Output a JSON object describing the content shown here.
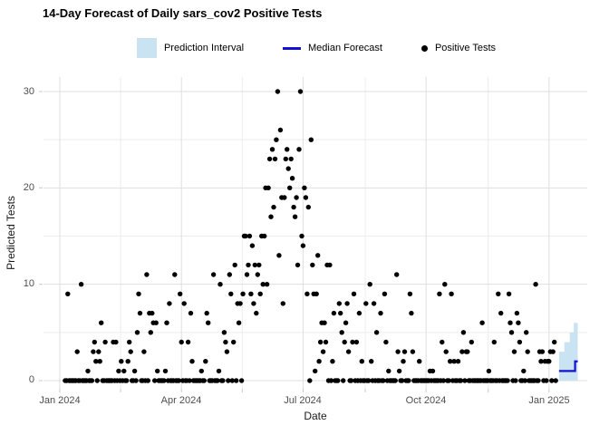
{
  "title": "14-Day Forecast of Daily sars_cov2 Positive Tests",
  "legend": {
    "prediction_interval": "Prediction Interval",
    "median_forecast": "Median Forecast",
    "positive_tests": "Positive Tests"
  },
  "colors": {
    "prediction_interval": "#C9E3F2",
    "median_forecast": "#1212D0",
    "points": "#000000",
    "grid_major": "#DFDFDF",
    "grid_minor": "#ECECEC",
    "tick": "#C9C9C9",
    "tick_label": "#4D4D4D"
  },
  "chart_data": {
    "type": "scatter",
    "title": "14-Day Forecast of Daily sars_cov2 Positive Tests",
    "xlabel": "Date",
    "ylabel": "Predicted Tests",
    "x_tick_labels": [
      "Jan 2024",
      "Apr 2024",
      "Jul 2024",
      "Oct 2024",
      "Jan 2025"
    ],
    "x_tick_days": [
      0,
      91,
      182,
      274,
      366
    ],
    "x_minor_days": [
      45.5,
      136.5,
      228.5,
      320.5
    ],
    "y_ticks": [
      0,
      10,
      20,
      30
    ],
    "y_minor": [
      5,
      15,
      25
    ],
    "ylim": [
      0,
      30
    ],
    "grid": true,
    "legend_position": "top",
    "day0_date": "2024-01-01",
    "cadence": "daily",
    "observed": {
      "name": "Positive Tests",
      "start_day": 4,
      "values": [
        0,
        0,
        9,
        0,
        0,
        0,
        0,
        0,
        0,
        3,
        0,
        0,
        10,
        0,
        0,
        0,
        0,
        1,
        0,
        0,
        0,
        3,
        4,
        2,
        0,
        3,
        2,
        6,
        0,
        0,
        4,
        0,
        0,
        0,
        0,
        0,
        4,
        0,
        4,
        0,
        1,
        0,
        2,
        0,
        1,
        0,
        0,
        2,
        4,
        3,
        0,
        0,
        1,
        0,
        5,
        9,
        7,
        0,
        0,
        3,
        0,
        11,
        0,
        7,
        5,
        7,
        6,
        0,
        6,
        1,
        0,
        0,
        0,
        0,
        0,
        1,
        6,
        0,
        8,
        0,
        0,
        0,
        11,
        0,
        0,
        0,
        9,
        4,
        0,
        8,
        0,
        0,
        4,
        0,
        7,
        2,
        0,
        0,
        0,
        0,
        0,
        0,
        1,
        0,
        0,
        2,
        7,
        6,
        0,
        0,
        0,
        11,
        0,
        0,
        0,
        1,
        10,
        0,
        0,
        5,
        4,
        3,
        0,
        11,
        9,
        0,
        4,
        12,
        0,
        8,
        6,
        8,
        0,
        9,
        15,
        15,
        11,
        12,
        15,
        9,
        14,
        8,
        12,
        7,
        11,
        12,
        9,
        15,
        10,
        15,
        20,
        10,
        20,
        23,
        17,
        24,
        18,
        23,
        25,
        30,
        13,
        26,
        19,
        8,
        19,
        23,
        24,
        22,
        20,
        23,
        21,
        18,
        17,
        19,
        12,
        24,
        30,
        15,
        14,
        20,
        19,
        9,
        18,
        0,
        25,
        12,
        9,
        1,
        9,
        13,
        2,
        4,
        6,
        3,
        6,
        4,
        12,
        0,
        12,
        0,
        2,
        7,
        0,
        0,
        0,
        8,
        7,
        5,
        0,
        4,
        6,
        8,
        3,
        0,
        0,
        4,
        9,
        0,
        4,
        0,
        7,
        0,
        2,
        0,
        0,
        8,
        0,
        0,
        10,
        2,
        0,
        8,
        0,
        5,
        0,
        0,
        7,
        0,
        0,
        9,
        4,
        0,
        1,
        0,
        0,
        0,
        0,
        0,
        11,
        3,
        1,
        0,
        0,
        2,
        3,
        0,
        0,
        0,
        9,
        7,
        3,
        0,
        0,
        0,
        0,
        2,
        0,
        0,
        0,
        0,
        0,
        0,
        0,
        1,
        0,
        1,
        0,
        0,
        0,
        0,
        9,
        0,
        4,
        0,
        10,
        3,
        0,
        0,
        2,
        9,
        0,
        2,
        0,
        0,
        2,
        0,
        0,
        3,
        5,
        0,
        3,
        3,
        0,
        0,
        4,
        0,
        0,
        0,
        0,
        0,
        0,
        0,
        6,
        0,
        0,
        0,
        0,
        1,
        0,
        0,
        0,
        4,
        0,
        0,
        9,
        0,
        7,
        0,
        0,
        0,
        0,
        0,
        9,
        6,
        5,
        0,
        3,
        0,
        7,
        6,
        4,
        0,
        0,
        1,
        0,
        5,
        3,
        0,
        0,
        0,
        0,
        0,
        10,
        0,
        0,
        3,
        2,
        3,
        0,
        2,
        0,
        2,
        2,
        3,
        0,
        3,
        4,
        0
      ]
    },
    "forecast": {
      "name": "14-Day Forecast",
      "start_day": 374,
      "median": [
        1,
        1,
        1,
        1,
        1,
        1,
        1,
        1,
        1,
        1,
        1,
        1,
        2,
        2
      ],
      "upper": [
        3,
        3,
        3,
        3,
        4,
        4,
        4,
        4,
        5,
        5,
        5,
        6,
        6,
        6
      ],
      "lower": [
        0,
        0,
        0,
        0,
        0,
        0,
        0,
        0,
        0,
        0,
        0,
        0,
        0,
        0
      ]
    }
  }
}
